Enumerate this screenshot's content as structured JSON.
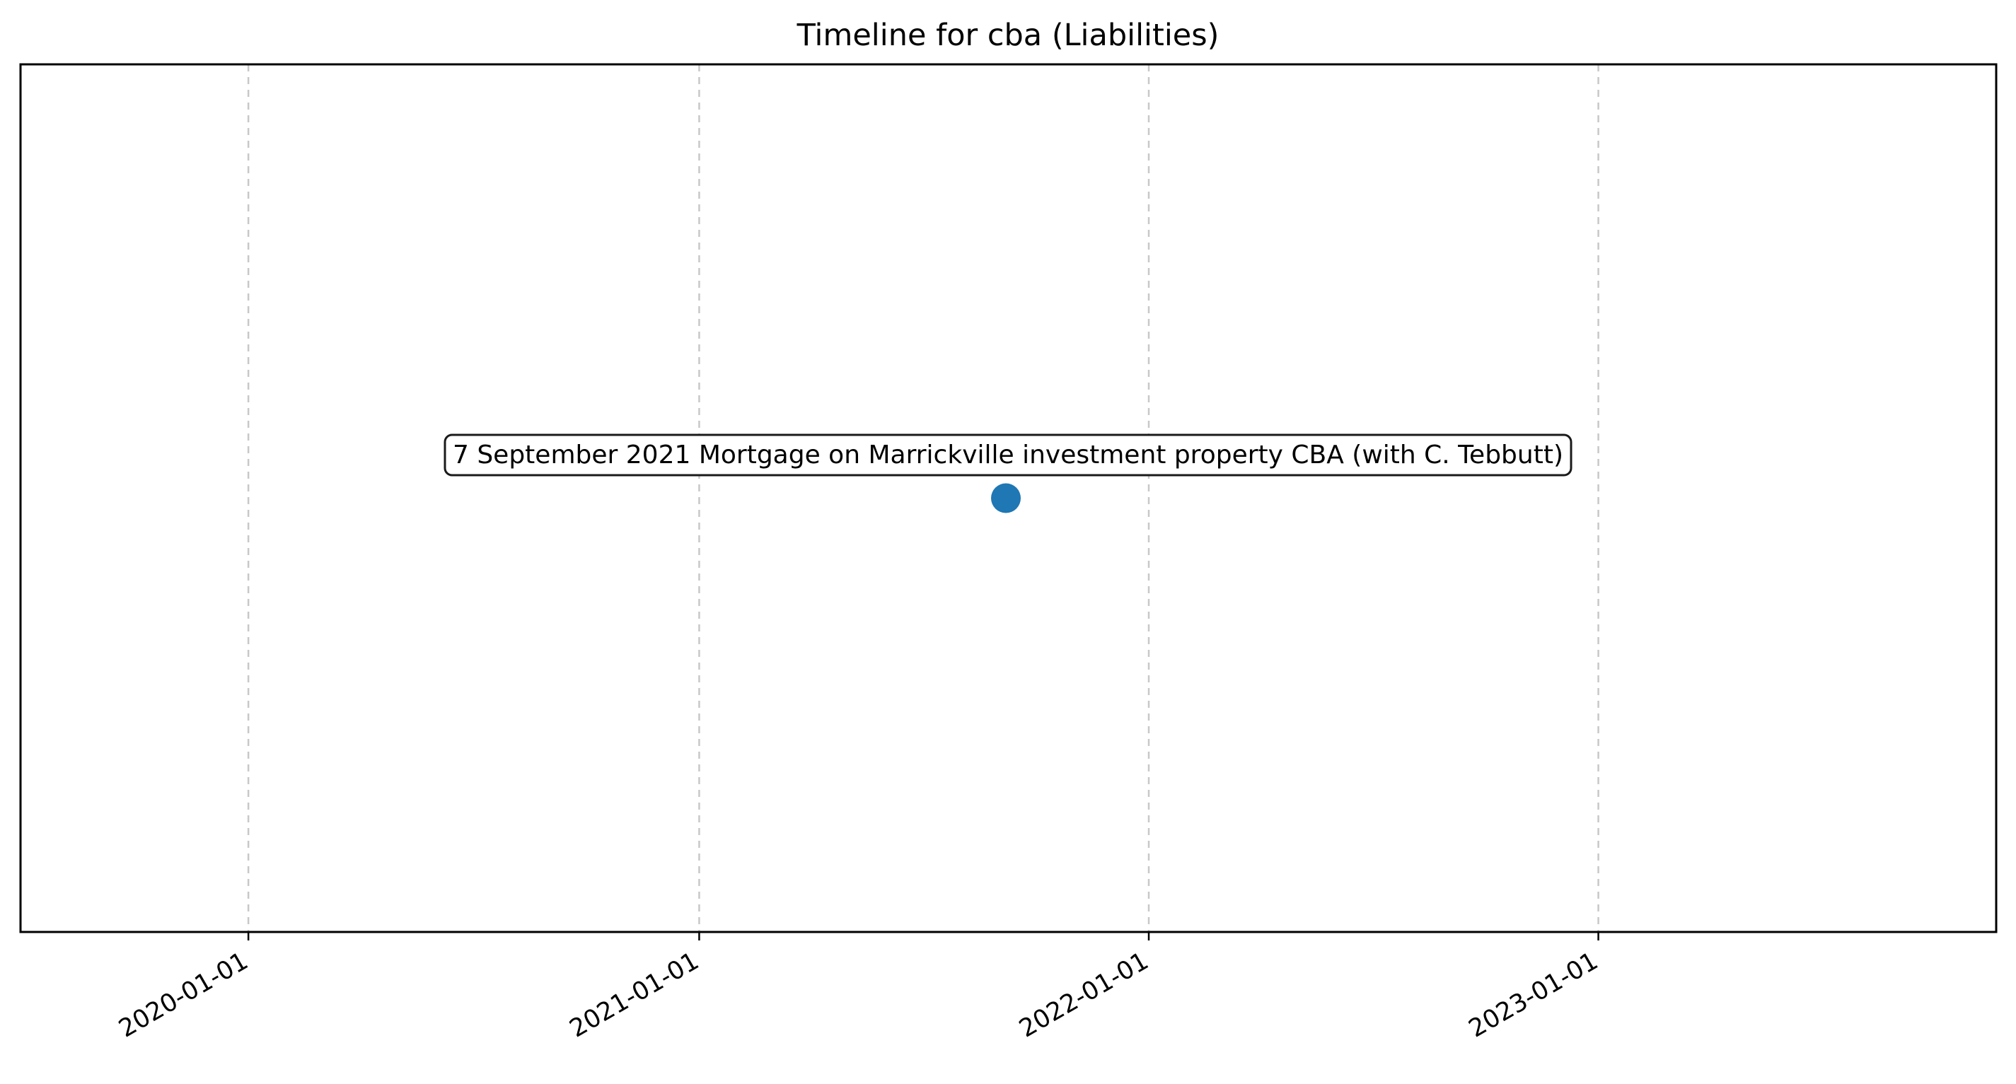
{
  "chart_data": {
    "type": "scatter",
    "title": "Timeline for cba (Liabilities)",
    "xlabel": "",
    "ylabel": "",
    "x_axis": "date",
    "xlim": [
      "2019-06-30",
      "2023-11-20"
    ],
    "ylim": [
      -1,
      1
    ],
    "x_ticks": [
      "2020-01-01",
      "2021-01-01",
      "2022-01-01",
      "2023-01-01"
    ],
    "y_ticks_visible": false,
    "grid": {
      "x": true,
      "y": false,
      "style": "dashed",
      "color": "#c8c8c8"
    },
    "legend": "none",
    "points": [
      {
        "x": "2021-09-07",
        "y": 0,
        "label": "7 September 2021 Mortgage on Marrickville investment property CBA (with C. Tebbutt)",
        "color": "#1f77b4"
      }
    ]
  }
}
